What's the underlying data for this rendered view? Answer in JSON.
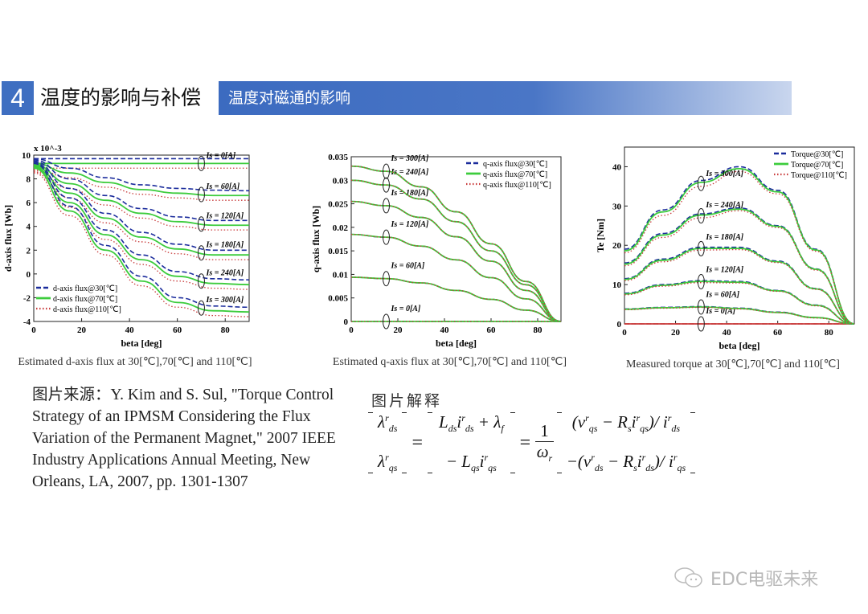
{
  "header": {
    "number": "4",
    "title": "温度的影响与补偿",
    "subtitle": "温度对磁通的影响"
  },
  "source": {
    "text": "图片来源：Y. Kim and S. Sul, \"Torque Control Strategy of an IPMSM Considering the Flux Variation of the Permanent Magnet,\" 2007 IEEE Industry Applications Annual Meeting, New Orleans, LA, 2007, pp. 1301-1307"
  },
  "explanation": {
    "label": "图片解释",
    "lhs": [
      {
        "b": "λ",
        "sup": "r",
        "sub": "ds"
      },
      {
        "b": "λ",
        "sup": "r",
        "sub": "qs"
      }
    ],
    "mid": [
      "L",
      "ds",
      "i",
      "r",
      "ds",
      "+ λ",
      "f",
      "− L",
      "qs",
      "i",
      "r",
      "qs"
    ],
    "frac": {
      "num": "1",
      "den": "ω",
      "den_sub": "r"
    },
    "rhs": [
      "(v",
      "r",
      "qs",
      "− R",
      "s",
      "i",
      "r",
      "qs",
      ")/ i",
      "r",
      "ds",
      "−(v",
      "r",
      "ds",
      "− R",
      "s",
      "i",
      "r",
      "ds",
      ")/ i",
      "r",
      "qs"
    ],
    "eq": "="
  },
  "watermark": {
    "text": "EDC电驱未来",
    "icon": "wechat-icon"
  },
  "colors": {
    "t30": "#1b2c9c",
    "t70": "#3ccc3c",
    "t110": "#c83a3a",
    "accent": "#3f6fc1"
  },
  "chart_data": [
    {
      "type": "line",
      "title": "",
      "caption": "Estimated d-axis flux at 30[℃],70[℃] and 110[℃]",
      "xlabel": "beta [deg]",
      "ylabel": "d-axis flux [Wb]",
      "y_multiplier": "x 10^-3",
      "xlim": [
        0,
        90
      ],
      "ylim": [
        -4,
        10
      ],
      "xticks": [
        0,
        20,
        40,
        60,
        80
      ],
      "yticks": [
        -4,
        -2,
        0,
        2,
        4,
        6,
        8,
        10
      ],
      "legend_position": "bottom-left",
      "marker_beta": 70,
      "legend": [
        "d-axis flux@30[℃]",
        "d-axis flux@70[℃]",
        "d-axis flux@110[℃]"
      ],
      "x": [
        0,
        15,
        30,
        45,
        60,
        75,
        90
      ],
      "groups": [
        {
          "label": "Is = 0[A]",
          "series": [
            [
              9.7,
              9.7,
              9.7,
              9.7,
              9.7,
              9.7,
              9.7
            ],
            [
              9.3,
              9.3,
              9.3,
              9.3,
              9.3,
              9.3,
              9.3
            ],
            [
              8.9,
              8.9,
              8.9,
              8.9,
              8.9,
              8.9,
              8.9
            ]
          ]
        },
        {
          "label": "Is = 60[A]",
          "series": [
            [
              9.7,
              8.9,
              8.1,
              7.5,
              7.2,
              7.05,
              7.0
            ],
            [
              9.3,
              8.5,
              7.7,
              7.1,
              6.8,
              6.6,
              6.6
            ],
            [
              8.9,
              8.1,
              7.3,
              6.7,
              6.4,
              6.2,
              6.2
            ]
          ]
        },
        {
          "label": "Is = 120[A]",
          "series": [
            [
              9.6,
              8.0,
              6.6,
              5.5,
              4.8,
              4.5,
              4.5
            ],
            [
              9.2,
              7.6,
              6.2,
              5.1,
              4.4,
              4.1,
              4.1
            ],
            [
              8.8,
              7.2,
              5.8,
              4.7,
              4.0,
              3.7,
              3.7
            ]
          ]
        },
        {
          "label": "Is = 180[A]",
          "series": [
            [
              9.5,
              7.2,
              5.1,
              3.5,
              2.5,
              2.0,
              2.0
            ],
            [
              9.1,
              6.8,
              4.7,
              3.1,
              2.1,
              1.6,
              1.6
            ],
            [
              8.7,
              6.4,
              4.3,
              2.7,
              1.7,
              1.2,
              1.2
            ]
          ]
        },
        {
          "label": "Is = 240[A]",
          "series": [
            [
              9.4,
              6.4,
              3.7,
              1.6,
              0.2,
              -0.4,
              -0.5
            ],
            [
              9.0,
              6.0,
              3.3,
              1.2,
              -0.2,
              -0.8,
              -0.9
            ],
            [
              8.6,
              5.6,
              2.9,
              0.8,
              -0.6,
              -1.2,
              -1.3
            ]
          ]
        },
        {
          "label": "Is = 300[A]",
          "series": [
            [
              9.3,
              5.7,
              2.4,
              -0.2,
              -2.0,
              -2.7,
              -2.8
            ],
            [
              8.9,
              5.3,
              2.0,
              -0.6,
              -2.4,
              -3.1,
              -3.2
            ],
            [
              8.5,
              4.9,
              1.6,
              -1.0,
              -2.8,
              -3.5,
              -3.6
            ]
          ]
        }
      ]
    },
    {
      "type": "line",
      "title": "",
      "caption": "Estimated q-axis flux at 30[℃],70[℃] and 110[℃]",
      "xlabel": "beta [deg]",
      "ylabel": "q-axis flux [Wb]",
      "xlim": [
        0,
        90
      ],
      "ylim": [
        0,
        0.035
      ],
      "xticks": [
        0,
        20,
        40,
        60,
        80
      ],
      "yticks": [
        0,
        0.005,
        0.01,
        0.015,
        0.02,
        0.025,
        0.03,
        0.035
      ],
      "legend_position": "top-right",
      "marker_beta": 15,
      "legend": [
        "q-axis flux@30[℃]",
        "q-axis flux@70[℃]",
        "q-axis flux@110[℃]"
      ],
      "x": [
        0,
        15,
        30,
        45,
        60,
        75,
        90
      ],
      "groups": [
        {
          "label": "Is = 0[A]",
          "series": [
            [
              0,
              0,
              0,
              0,
              0,
              0,
              0
            ],
            [
              0,
              0,
              0,
              0,
              0,
              0,
              0
            ],
            [
              0,
              0,
              0,
              0,
              0,
              0,
              0
            ]
          ]
        },
        {
          "label": "Is = 60[A]",
          "series": [
            [
              0.0094,
              0.0091,
              0.0082,
              0.0066,
              0.0047,
              0.0024,
              0
            ],
            [
              0.0094,
              0.0091,
              0.0082,
              0.0066,
              0.0047,
              0.0024,
              0
            ],
            [
              0.0094,
              0.0091,
              0.0082,
              0.0066,
              0.0047,
              0.0024,
              0
            ]
          ]
        },
        {
          "label": "Is = 120[A]",
          "series": [
            [
              0.0185,
              0.0179,
              0.016,
              0.0131,
              0.0093,
              0.0048,
              0
            ],
            [
              0.0185,
              0.0179,
              0.016,
              0.0131,
              0.0093,
              0.0048,
              0
            ],
            [
              0.0185,
              0.0179,
              0.016,
              0.0131,
              0.0093,
              0.0048,
              0
            ]
          ]
        },
        {
          "label": "Is = 180[A]",
          "series": [
            [
              0.0255,
              0.0246,
              0.0221,
              0.018,
              0.0128,
              0.0066,
              0
            ],
            [
              0.0255,
              0.0246,
              0.0221,
              0.018,
              0.0128,
              0.0066,
              0
            ],
            [
              0.0255,
              0.0246,
              0.0221,
              0.018,
              0.0128,
              0.0066,
              0
            ]
          ]
        },
        {
          "label": "Is = 240[A]",
          "series": [
            [
              0.03,
              0.029,
              0.026,
              0.0212,
              0.015,
              0.0078,
              0
            ],
            [
              0.03,
              0.029,
              0.026,
              0.0212,
              0.015,
              0.0078,
              0
            ],
            [
              0.03,
              0.029,
              0.026,
              0.0212,
              0.015,
              0.0078,
              0
            ]
          ]
        },
        {
          "label": "Is = 300[A]",
          "series": [
            [
              0.033,
              0.0319,
              0.0286,
              0.0233,
              0.0165,
              0.0085,
              0
            ],
            [
              0.033,
              0.0319,
              0.0286,
              0.0233,
              0.0165,
              0.0085,
              0
            ],
            [
              0.033,
              0.0319,
              0.0286,
              0.0233,
              0.0165,
              0.0085,
              0
            ]
          ]
        }
      ]
    },
    {
      "type": "line",
      "title": "",
      "caption": "Measured torque at 30[℃],70[℃] and 110[℃]",
      "xlabel": "beta [deg]",
      "ylabel": "Te [Nm]",
      "xlim": [
        0,
        90
      ],
      "ylim": [
        0,
        45
      ],
      "xticks": [
        0,
        20,
        40,
        60,
        80
      ],
      "yticks": [
        0,
        10,
        20,
        30,
        40
      ],
      "legend_position": "top-right",
      "marker_beta": 30,
      "legend": [
        "Torque@30[℃]",
        "Torque@70[℃]",
        "Torque@110[℃]"
      ],
      "x": [
        0,
        15,
        30,
        45,
        60,
        75,
        90
      ],
      "groups": [
        {
          "label": "Is = 0[A]",
          "series": [
            [
              0,
              0,
              0,
              0,
              0,
              0,
              0
            ],
            [
              0,
              0,
              0,
              0,
              0,
              0,
              0
            ],
            [
              0,
              0,
              0,
              0,
              0,
              0,
              0
            ]
          ]
        },
        {
          "label": "Is = 60[A]",
          "series": [
            [
              3.8,
              4.2,
              4.4,
              4.0,
              3.0,
              1.6,
              0
            ],
            [
              3.7,
              4.1,
              4.3,
              3.9,
              2.9,
              1.6,
              0
            ],
            [
              3.6,
              4.0,
              4.2,
              3.8,
              2.9,
              1.5,
              0
            ]
          ]
        },
        {
          "label": "Is = 120[A]",
          "series": [
            [
              7.8,
              10.0,
              11.0,
              10.8,
              8.5,
              4.8,
              0
            ],
            [
              7.6,
              9.8,
              10.8,
              10.6,
              8.4,
              4.7,
              0
            ],
            [
              7.4,
              9.6,
              10.5,
              10.4,
              8.3,
              4.6,
              0
            ]
          ]
        },
        {
          "label": "Is = 180[A]",
          "series": [
            [
              11.5,
              16.5,
              19.5,
              19.5,
              16.0,
              9.0,
              0
            ],
            [
              11.3,
              16.2,
              19.2,
              19.2,
              15.8,
              8.9,
              0
            ],
            [
              11.0,
              15.8,
              18.8,
              18.9,
              15.6,
              8.8,
              0
            ]
          ]
        },
        {
          "label": "Is = 240[A]",
          "series": [
            [
              15.5,
              23.0,
              28.0,
              29.5,
              25.0,
              14.0,
              0
            ],
            [
              15.2,
              22.6,
              27.7,
              29.2,
              24.8,
              13.9,
              0
            ],
            [
              14.8,
              22.0,
              27.0,
              28.8,
              24.5,
              13.7,
              0
            ]
          ]
        },
        {
          "label": "Is = 300[A]",
          "series": [
            [
              19.0,
              29.0,
              36.5,
              40.0,
              34.0,
              19.0,
              0
            ],
            [
              18.6,
              28.5,
              36.0,
              39.5,
              33.6,
              18.8,
              0
            ],
            [
              18.1,
              27.6,
              35.0,
              38.8,
              33.1,
              18.5,
              0
            ]
          ]
        }
      ]
    }
  ]
}
